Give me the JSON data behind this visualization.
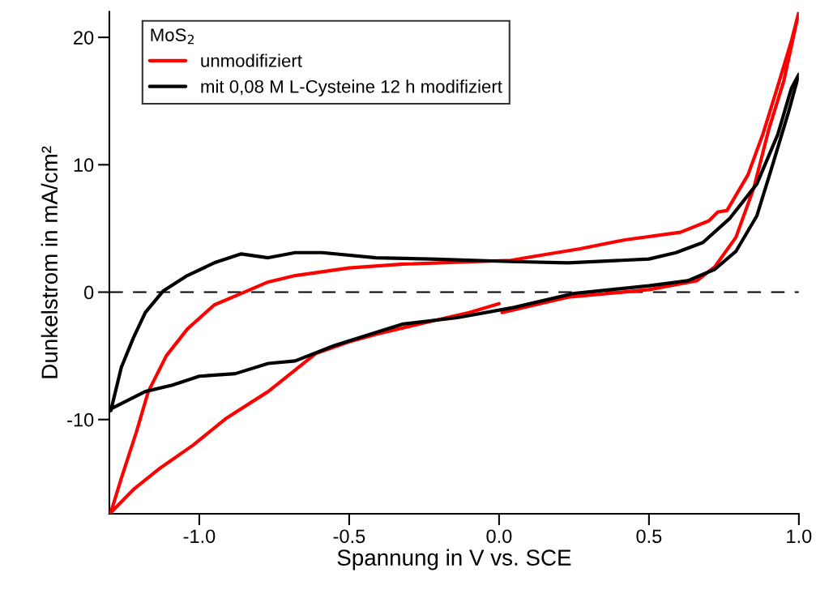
{
  "chart_data": {
    "type": "line",
    "xlabel": "Spannung in V vs. SCE",
    "ylabel": "Dunkelstrom in mA/cm²",
    "legend_title": "MoS$_{2}$",
    "legend": "top left",
    "grid": false,
    "line_style": "solid",
    "marker": "none",
    "xlim": [
      -1.3,
      1.0
    ],
    "ylim": [
      -17.4,
      22
    ],
    "xticks": [
      {
        "value": -1.0,
        "label": "-1.0"
      },
      {
        "value": -0.5,
        "label": "-0.5"
      },
      {
        "value": 0.0,
        "label": "0.0"
      },
      {
        "value": 0.5,
        "label": "0.5"
      },
      {
        "value": 1.0,
        "label": "1.0"
      }
    ],
    "yticks": [
      -10,
      0,
      10,
      20
    ],
    "ref_lines": [
      {
        "axis": "y",
        "value": 0,
        "color": "#000000",
        "line_style": "dashed"
      }
    ],
    "series": [
      {
        "name": "unmodifiziert",
        "color": "#ff0000",
        "x": [
          0.01,
          0.23,
          0.5,
          0.66,
          0.72,
          0.79,
          0.85,
          0.9,
          0.95,
          1.0,
          0.976,
          0.93,
          0.88,
          0.83,
          0.76,
          0.73,
          0.7,
          0.605,
          0.42,
          0.27,
          0.09,
          0.04,
          -0.32,
          -0.5,
          -0.68,
          -0.77,
          -0.86,
          -0.95,
          -1.04,
          -1.11,
          -1.17,
          -1.21,
          -1.26,
          -1.295,
          -1.22,
          -1.13,
          -1.02,
          -0.91,
          -0.77,
          -0.61,
          -0.5,
          -0.41,
          -0.23,
          -0.1,
          0.0
        ],
        "values": [
          -1.6,
          -0.4,
          0.2,
          0.9,
          2.0,
          4.3,
          8.2,
          12.8,
          16.6,
          22.0,
          19.8,
          16.2,
          12.4,
          9.2,
          6.4,
          6.3,
          5.6,
          4.7,
          4.1,
          3.4,
          2.7,
          2.5,
          2.2,
          1.9,
          1.3,
          0.8,
          -0.1,
          -1.0,
          -2.9,
          -5.0,
          -7.8,
          -11.0,
          -14.6,
          -17.3,
          -15.5,
          -13.8,
          -12.0,
          -9.9,
          -7.8,
          -4.8,
          -3.9,
          -3.3,
          -2.3,
          -1.6,
          -0.9
        ]
      },
      {
        "name": "mit 0,08 M L-Cysteine 12 h modifiziert",
        "color": "#000000",
        "x": [
          -1.295,
          -1.26,
          -1.22,
          -1.18,
          -1.12,
          -1.04,
          -0.95,
          -0.86,
          -0.77,
          -0.68,
          -0.59,
          -0.41,
          -0.23,
          0.04,
          0.23,
          0.5,
          0.59,
          0.68,
          0.77,
          0.86,
          0.93,
          0.975,
          1.0,
          0.965,
          0.91,
          0.86,
          0.79,
          0.72,
          0.63,
          0.5,
          0.25,
          0.05,
          -0.14,
          -0.32,
          -0.43,
          -0.55,
          -0.68,
          -0.77,
          -0.88,
          -1.0,
          -1.09,
          -1.18,
          -1.29
        ],
        "values": [
          -9.3,
          -5.9,
          -3.6,
          -1.6,
          0.1,
          1.3,
          2.3,
          3.0,
          2.7,
          3.1,
          3.1,
          2.7,
          2.6,
          2.4,
          2.3,
          2.6,
          3.1,
          3.9,
          5.8,
          8.5,
          12.4,
          16.0,
          17.1,
          14.1,
          9.8,
          6.0,
          3.2,
          1.8,
          0.9,
          0.5,
          -0.1,
          -1.2,
          -2.0,
          -2.5,
          -3.3,
          -4.2,
          -5.4,
          -5.6,
          -6.4,
          -6.6,
          -7.3,
          -7.8,
          -9.1
        ]
      }
    ]
  }
}
